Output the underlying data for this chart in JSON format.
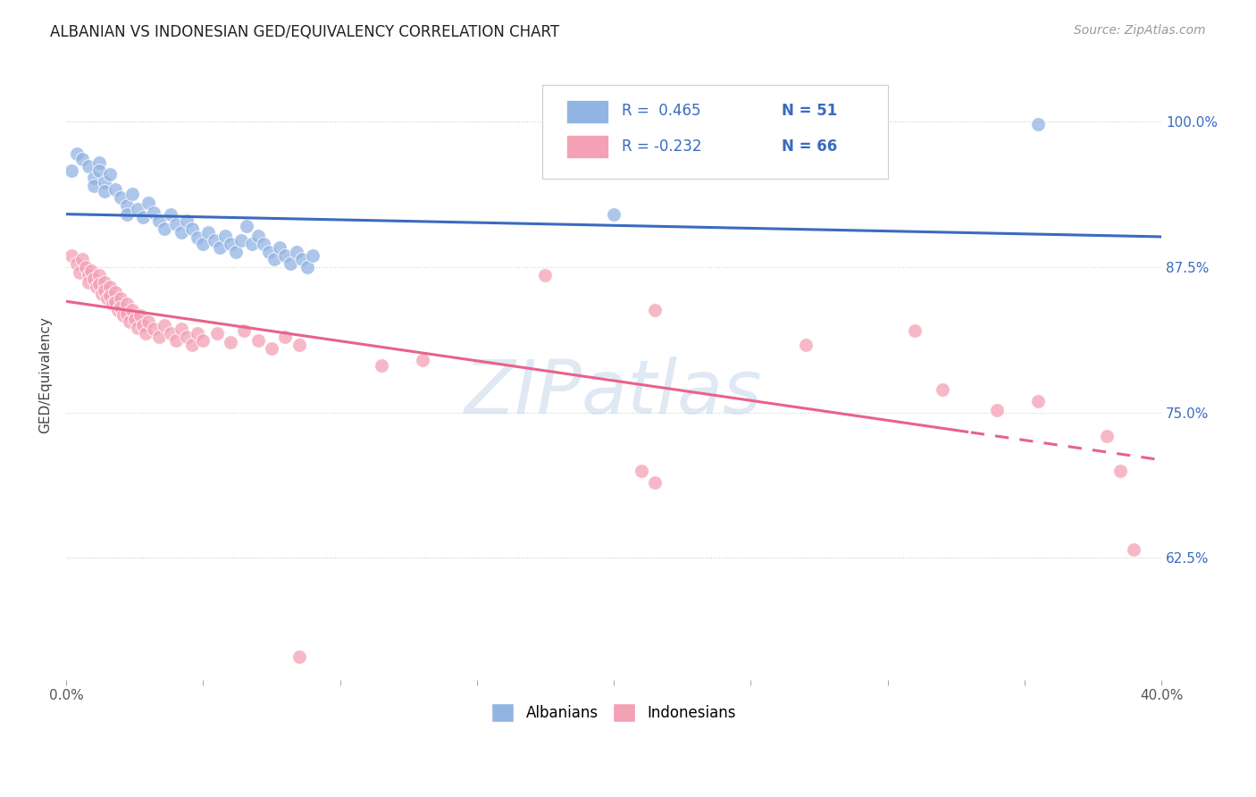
{
  "title": "ALBANIAN VS INDONESIAN GED/EQUIVALENCY CORRELATION CHART",
  "source": "Source: ZipAtlas.com",
  "ylabel": "GED/Equivalency",
  "ytick_labels": [
    "100.0%",
    "87.5%",
    "75.0%",
    "62.5%"
  ],
  "ytick_values": [
    1.0,
    0.875,
    0.75,
    0.625
  ],
  "albanian_color": "#92b4e3",
  "indonesian_color": "#f4a0b5",
  "albanian_line_color": "#3a6bbf",
  "indonesian_line_color": "#e8628a",
  "watermark": "ZIPatlas",
  "background_color": "#ffffff",
  "xlim": [
    0.0,
    0.4
  ],
  "ylim": [
    0.52,
    1.045
  ],
  "albanian_points": [
    [
      0.002,
      0.958
    ],
    [
      0.004,
      0.972
    ],
    [
      0.006,
      0.968
    ],
    [
      0.008,
      0.962
    ],
    [
      0.01,
      0.952
    ],
    [
      0.01,
      0.945
    ],
    [
      0.012,
      0.965
    ],
    [
      0.012,
      0.958
    ],
    [
      0.014,
      0.948
    ],
    [
      0.014,
      0.94
    ],
    [
      0.016,
      0.955
    ],
    [
      0.018,
      0.942
    ],
    [
      0.02,
      0.935
    ],
    [
      0.022,
      0.928
    ],
    [
      0.022,
      0.92
    ],
    [
      0.024,
      0.938
    ],
    [
      0.026,
      0.925
    ],
    [
      0.028,
      0.918
    ],
    [
      0.03,
      0.93
    ],
    [
      0.032,
      0.922
    ],
    [
      0.034,
      0.915
    ],
    [
      0.036,
      0.908
    ],
    [
      0.038,
      0.92
    ],
    [
      0.04,
      0.912
    ],
    [
      0.042,
      0.905
    ],
    [
      0.044,
      0.915
    ],
    [
      0.046,
      0.908
    ],
    [
      0.048,
      0.9
    ],
    [
      0.05,
      0.895
    ],
    [
      0.052,
      0.905
    ],
    [
      0.054,
      0.898
    ],
    [
      0.056,
      0.892
    ],
    [
      0.058,
      0.902
    ],
    [
      0.06,
      0.895
    ],
    [
      0.062,
      0.888
    ],
    [
      0.064,
      0.898
    ],
    [
      0.066,
      0.91
    ],
    [
      0.068,
      0.895
    ],
    [
      0.07,
      0.902
    ],
    [
      0.072,
      0.895
    ],
    [
      0.074,
      0.888
    ],
    [
      0.076,
      0.882
    ],
    [
      0.078,
      0.892
    ],
    [
      0.08,
      0.885
    ],
    [
      0.082,
      0.878
    ],
    [
      0.084,
      0.888
    ],
    [
      0.086,
      0.882
    ],
    [
      0.088,
      0.875
    ],
    [
      0.09,
      0.885
    ],
    [
      0.2,
      0.92
    ],
    [
      0.355,
      0.998
    ]
  ],
  "indonesian_points": [
    [
      0.002,
      0.885
    ],
    [
      0.004,
      0.878
    ],
    [
      0.005,
      0.87
    ],
    [
      0.006,
      0.882
    ],
    [
      0.007,
      0.875
    ],
    [
      0.008,
      0.868
    ],
    [
      0.008,
      0.862
    ],
    [
      0.009,
      0.872
    ],
    [
      0.01,
      0.865
    ],
    [
      0.011,
      0.858
    ],
    [
      0.012,
      0.868
    ],
    [
      0.012,
      0.86
    ],
    [
      0.013,
      0.852
    ],
    [
      0.014,
      0.862
    ],
    [
      0.014,
      0.855
    ],
    [
      0.015,
      0.848
    ],
    [
      0.016,
      0.858
    ],
    [
      0.016,
      0.85
    ],
    [
      0.017,
      0.843
    ],
    [
      0.018,
      0.853
    ],
    [
      0.018,
      0.845
    ],
    [
      0.019,
      0.838
    ],
    [
      0.02,
      0.848
    ],
    [
      0.02,
      0.84
    ],
    [
      0.021,
      0.833
    ],
    [
      0.022,
      0.843
    ],
    [
      0.022,
      0.835
    ],
    [
      0.023,
      0.828
    ],
    [
      0.024,
      0.838
    ],
    [
      0.025,
      0.83
    ],
    [
      0.026,
      0.823
    ],
    [
      0.027,
      0.833
    ],
    [
      0.028,
      0.825
    ],
    [
      0.029,
      0.818
    ],
    [
      0.03,
      0.828
    ],
    [
      0.032,
      0.822
    ],
    [
      0.034,
      0.815
    ],
    [
      0.036,
      0.825
    ],
    [
      0.038,
      0.818
    ],
    [
      0.04,
      0.812
    ],
    [
      0.042,
      0.822
    ],
    [
      0.044,
      0.815
    ],
    [
      0.046,
      0.808
    ],
    [
      0.048,
      0.818
    ],
    [
      0.05,
      0.812
    ],
    [
      0.055,
      0.818
    ],
    [
      0.06,
      0.81
    ],
    [
      0.065,
      0.82
    ],
    [
      0.07,
      0.812
    ],
    [
      0.075,
      0.805
    ],
    [
      0.08,
      0.815
    ],
    [
      0.085,
      0.808
    ],
    [
      0.115,
      0.79
    ],
    [
      0.13,
      0.795
    ],
    [
      0.175,
      0.868
    ],
    [
      0.215,
      0.838
    ],
    [
      0.27,
      0.808
    ],
    [
      0.31,
      0.82
    ],
    [
      0.32,
      0.77
    ],
    [
      0.34,
      0.752
    ],
    [
      0.355,
      0.76
    ],
    [
      0.38,
      0.73
    ],
    [
      0.385,
      0.7
    ],
    [
      0.39,
      0.632
    ],
    [
      0.085,
      0.54
    ],
    [
      0.21,
      0.7
    ],
    [
      0.215,
      0.69
    ]
  ]
}
